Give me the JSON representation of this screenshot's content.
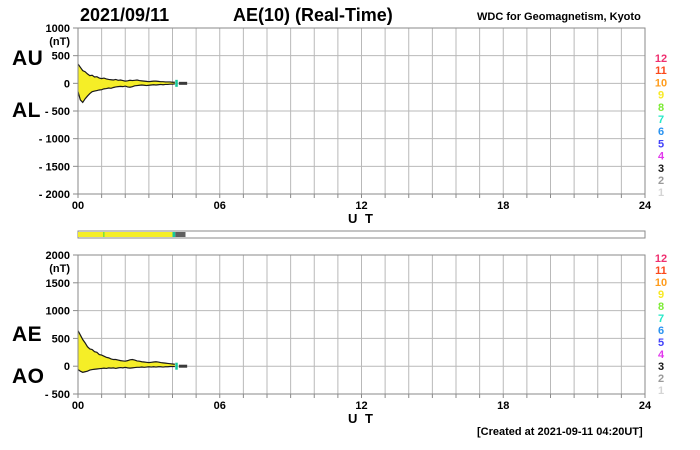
{
  "header": {
    "date": "2021/09/11",
    "title": "AE(10) (Real-Time)",
    "source": "WDC for Geomagnetism, Kyoto"
  },
  "footer": {
    "created": "[Created at 2021-09-11 04:20UT]"
  },
  "colors": {
    "band_fill": "#f5ee27",
    "band_outline": "#1a1a1a",
    "grid": "#b9b9b9",
    "frame": "#8a8a8a",
    "end_tick": "#17c99b",
    "tail": "#3a3a3a",
    "bar_empty": "#ffffff"
  },
  "stations": {
    "labels": [
      "12",
      "11",
      "10",
      "9",
      "8",
      "7",
      "6",
      "5",
      "4",
      "3",
      "2",
      "1"
    ],
    "colors": [
      "#ef3070",
      "#fb4a1c",
      "#ff9c1c",
      "#f8e925",
      "#7deb36",
      "#26e8c8",
      "#2b93f0",
      "#4343fa",
      "#e238ed",
      "#181818",
      "#9a9a9a",
      "#d4d4d4"
    ]
  },
  "status_bar": {
    "segments": [
      {
        "from_hour": 0,
        "to_hour": 4.0,
        "color": "#f5ee27"
      },
      {
        "from_hour": 4.0,
        "to_hour": 4.12,
        "color": "#17c99b"
      },
      {
        "from_hour": 4.12,
        "to_hour": 4.55,
        "color": "#5f5f5f"
      }
    ],
    "tick": {
      "at_hour": 1.06,
      "color": "#7ce23c"
    }
  },
  "chart_data": [
    {
      "type": "area",
      "name": "AU / AL band",
      "left_labels": [
        "AU",
        "AL"
      ],
      "unit": "(nT)",
      "ylim": [
        -2000,
        1000
      ],
      "yticks": [
        1000,
        500,
        0,
        -500,
        -1000,
        -1500,
        -2000
      ],
      "ytick_labels": [
        "1000",
        "500",
        "0",
        "- 500",
        "- 1000",
        "- 1500",
        "- 2000"
      ],
      "xlim": [
        0,
        24
      ],
      "xticks": [
        0,
        6,
        12,
        18,
        24
      ],
      "xtick_labels": [
        "00",
        "06",
        "12",
        "18",
        "24"
      ],
      "xlabel": "U T",
      "grid": true,
      "x": [
        0,
        0.1,
        0.2,
        0.3,
        0.4,
        0.5,
        0.6,
        0.7,
        0.8,
        0.9,
        1,
        1.1,
        1.2,
        1.3,
        1.4,
        1.5,
        1.6,
        1.7,
        1.8,
        1.9,
        2,
        2.1,
        2.2,
        2.3,
        2.4,
        2.5,
        2.6,
        2.7,
        2.8,
        2.9,
        3,
        3.1,
        3.2,
        3.3,
        3.4,
        3.5,
        3.6,
        3.7,
        3.8,
        3.9,
        4,
        4.1
      ],
      "series": [
        {
          "name": "AU",
          "values": [
            350,
            290,
            230,
            210,
            170,
            140,
            145,
            115,
            120,
            95,
            85,
            95,
            80,
            70,
            65,
            60,
            70,
            55,
            60,
            50,
            40,
            45,
            55,
            50,
            55,
            60,
            50,
            45,
            40,
            35,
            30,
            35,
            40,
            40,
            35,
            30,
            30,
            25,
            25,
            25,
            20,
            20
          ]
        },
        {
          "name": "AL",
          "values": [
            -150,
            -300,
            -345,
            -280,
            -230,
            -185,
            -150,
            -140,
            -130,
            -120,
            -115,
            -100,
            -95,
            -85,
            -90,
            -75,
            -65,
            -60,
            -55,
            -60,
            -50,
            -65,
            -70,
            -60,
            -45,
            -40,
            -35,
            -30,
            -35,
            -40,
            -35,
            -30,
            -25,
            -30,
            -25,
            -20,
            -25,
            -20,
            -20,
            -15,
            -15,
            -10
          ]
        }
      ],
      "end_tick_hour": 4.17,
      "tail": {
        "from_hour": 4.27,
        "to_hour": 4.62,
        "value": 0
      }
    },
    {
      "type": "area",
      "name": "AE / AO band",
      "left_labels": [
        "AE",
        "AO"
      ],
      "unit": "(nT)",
      "ylim": [
        -500,
        2000
      ],
      "yticks": [
        2000,
        1500,
        1000,
        500,
        0,
        -500
      ],
      "ytick_labels": [
        "2000",
        "1500",
        "1000",
        "500",
        "0",
        "- 500"
      ],
      "xlim": [
        0,
        24
      ],
      "xticks": [
        0,
        6,
        12,
        18,
        24
      ],
      "xtick_labels": [
        "00",
        "06",
        "12",
        "18",
        "24"
      ],
      "xlabel": "U T",
      "grid": true,
      "x": [
        0,
        0.1,
        0.2,
        0.3,
        0.4,
        0.5,
        0.6,
        0.7,
        0.8,
        0.9,
        1,
        1.1,
        1.2,
        1.3,
        1.4,
        1.5,
        1.6,
        1.7,
        1.8,
        1.9,
        2,
        2.1,
        2.2,
        2.3,
        2.4,
        2.5,
        2.6,
        2.7,
        2.8,
        2.9,
        3,
        3.1,
        3.2,
        3.3,
        3.4,
        3.5,
        3.6,
        3.7,
        3.8,
        3.9,
        4,
        4.1
      ],
      "series": [
        {
          "name": "AE",
          "values": [
            640,
            560,
            480,
            420,
            350,
            310,
            300,
            260,
            250,
            210,
            200,
            180,
            160,
            150,
            130,
            120,
            120,
            110,
            100,
            95,
            90,
            100,
            115,
            120,
            110,
            95,
            90,
            80,
            75,
            70,
            65,
            70,
            75,
            80,
            75,
            65,
            60,
            55,
            50,
            45,
            40,
            35
          ]
        },
        {
          "name": "AO",
          "values": [
            -60,
            -90,
            -110,
            -100,
            -90,
            -70,
            -60,
            -55,
            -50,
            -45,
            -40,
            -35,
            -40,
            -30,
            -35,
            -30,
            -40,
            -30,
            -25,
            -30,
            -20,
            -30,
            -35,
            -30,
            -25,
            -20,
            -20,
            -15,
            -20,
            -15,
            -10,
            -15,
            -10,
            -15,
            -10,
            -10,
            -15,
            -10,
            -10,
            -5,
            -5,
            -5
          ]
        }
      ],
      "end_tick_hour": 4.17,
      "tail": {
        "from_hour": 4.27,
        "to_hour": 4.62,
        "value": 0
      }
    }
  ]
}
